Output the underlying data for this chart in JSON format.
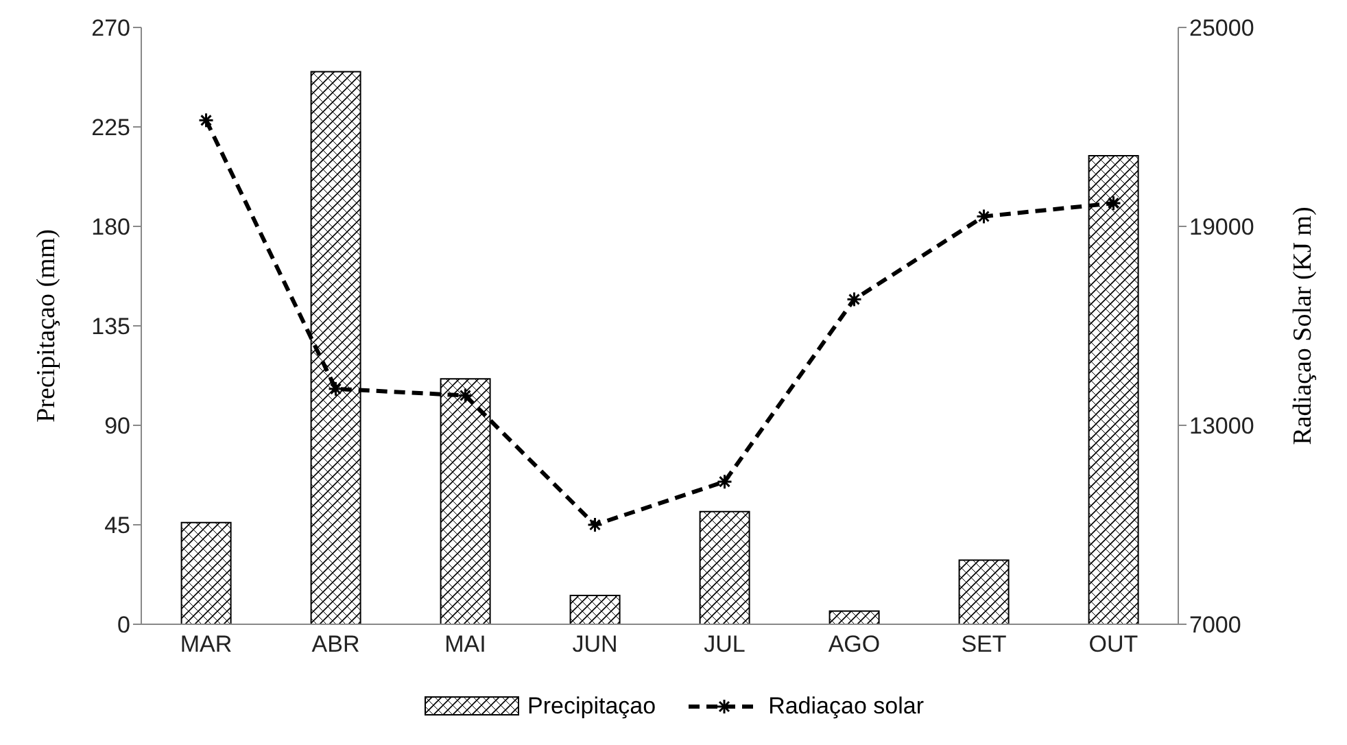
{
  "chart_data": {
    "type": "bar",
    "categories": [
      "MAR",
      "ABR",
      "MAI",
      "JUN",
      "JUL",
      "AGO",
      "SET",
      "OUT"
    ],
    "series": [
      {
        "name": "Precipitaçao",
        "color": "#000000",
        "values": [
          46,
          250,
          111,
          13,
          51,
          6,
          29,
          212
        ]
      },
      {
        "name": "Radiaçao solar",
        "type": "line",
        "axis": "y2",
        "color": "#000000",
        "marker": "cross",
        "line_style": "dashed",
        "values": [
          22200,
          14100,
          13900,
          10000,
          11300,
          16800,
          19300,
          19700
        ]
      }
    ],
    "ylabel": "Precipitaçao (mm)",
    "y2label": "Radiaçao Solar (KJ m)",
    "ylim": [
      0,
      270
    ],
    "yticks": [
      0,
      45,
      90,
      135,
      180,
      225,
      270
    ],
    "y2lim": [
      7000,
      25000
    ],
    "y2ticks": [
      7000,
      13000,
      19000,
      25000
    ],
    "grid": false,
    "legend": "bottom"
  }
}
